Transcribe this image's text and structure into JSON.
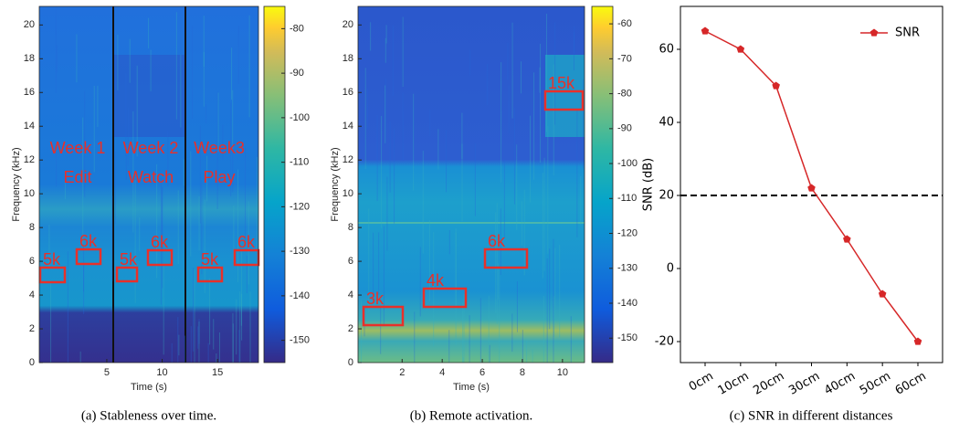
{
  "chart_data": [
    {
      "type": "spectrogram",
      "xlabel": "Time (s)",
      "ylabel": "Frequency (kHz)",
      "xlim": [
        -1.1,
        18.7
      ],
      "xticks": [
        5,
        10,
        15
      ],
      "ylim": [
        0,
        21.1
      ],
      "yticks": [
        0,
        2,
        4,
        6,
        8,
        10,
        12,
        14,
        16,
        18,
        20
      ],
      "colorbar": {
        "clim": [
          -155,
          -75
        ],
        "ticks": [
          -150,
          -140,
          -130,
          -120,
          -110,
          -100,
          -90,
          -80
        ]
      },
      "annotations": [
        "Week 1",
        "Edit",
        "Week 2",
        "Watch",
        "Week3",
        "Play"
      ],
      "box_labels": [
        "5k",
        "6k",
        "5k",
        "6k",
        "5k",
        "6k"
      ],
      "caption": "(a)  Stableness over time."
    },
    {
      "type": "spectrogram",
      "xlabel": "Time (s)",
      "ylabel": "Frequency (kHz)",
      "xlim": [
        -0.2,
        11.1
      ],
      "xticks": [
        2,
        4,
        6,
        8,
        10
      ],
      "ylim": [
        0,
        21.1
      ],
      "yticks": [
        0,
        2,
        4,
        6,
        8,
        10,
        12,
        14,
        16,
        18,
        20
      ],
      "colorbar": {
        "clim": [
          -157,
          -55
        ],
        "ticks": [
          -150,
          -140,
          -130,
          -120,
          -110,
          -100,
          -90,
          -80,
          -70,
          -60
        ]
      },
      "box_labels": [
        "3k",
        "4k",
        "6k",
        "15k"
      ],
      "caption": "(b)  Remote activation."
    },
    {
      "type": "line",
      "ylabel": "SNR (dB)",
      "categories": [
        "0cm",
        "10cm",
        "20cm",
        "30cm",
        "40cm",
        "50cm",
        "60cm"
      ],
      "series": [
        {
          "name": "SNR",
          "color": "#d62728",
          "values": [
            65,
            60,
            50,
            22,
            8,
            -7,
            -20
          ]
        }
      ],
      "ylim": [
        -25.75,
        71.75
      ],
      "yticks": [
        -20,
        0,
        20,
        40,
        60
      ],
      "hline": 20,
      "legend": "upper right",
      "caption": "(c)  SNR in different distances"
    }
  ]
}
